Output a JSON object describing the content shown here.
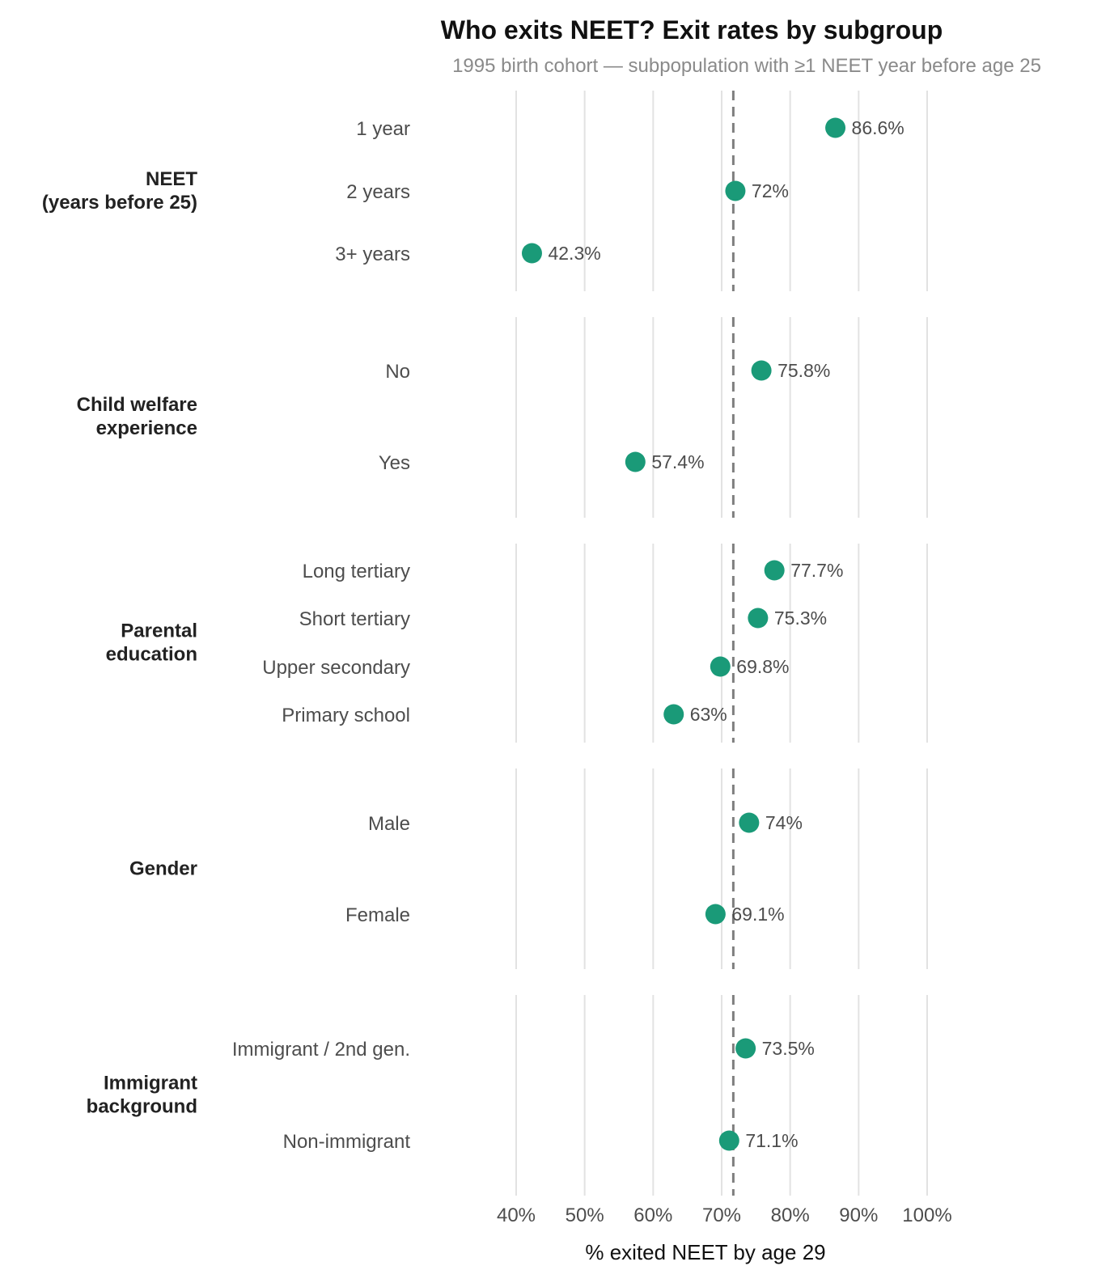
{
  "colors": {
    "point": "#1a9a78",
    "reference_line": "#7f7f7f",
    "gridline": "#e2e2e2"
  },
  "chart_data": {
    "type": "scatter",
    "title": "Who exits NEET? Exit rates by subgroup",
    "subtitle": "1995 birth cohort — subpopulation with ≥1 NEET year before age 25",
    "xlabel": "% exited NEET by age 29",
    "xlim": [
      40,
      100
    ],
    "xticks": [
      "40%",
      "50%",
      "60%",
      "70%",
      "80%",
      "90%",
      "100%"
    ],
    "reference_line": 71.7,
    "grid": true,
    "groups": [
      {
        "label": "NEET\n(years before 25)",
        "categories": [
          "1 year",
          "2 years",
          "3+ years"
        ],
        "values": [
          86.6,
          72,
          42.3
        ],
        "value_labels": [
          "86.6%",
          "72%",
          "42.3%"
        ]
      },
      {
        "label": "Child welfare\nexperience",
        "categories": [
          "No",
          "Yes"
        ],
        "values": [
          75.8,
          57.4
        ],
        "value_labels": [
          "75.8%",
          "57.4%"
        ]
      },
      {
        "label": "Parental\neducation",
        "categories": [
          "Long tertiary",
          "Short tertiary",
          "Upper secondary",
          "Primary school"
        ],
        "values": [
          77.7,
          75.3,
          69.8,
          63
        ],
        "value_labels": [
          "77.7%",
          "75.3%",
          "69.8%",
          "63%"
        ]
      },
      {
        "label": "Gender",
        "categories": [
          "Male",
          "Female"
        ],
        "values": [
          74,
          69.1
        ],
        "value_labels": [
          "74%",
          "69.1%"
        ]
      },
      {
        "label": "Immigrant\nbackground",
        "categories": [
          "Immigrant / 2nd gen.",
          "Non-immigrant"
        ],
        "values": [
          73.5,
          71.1
        ],
        "value_labels": [
          "73.5%",
          "71.1%"
        ]
      }
    ]
  }
}
